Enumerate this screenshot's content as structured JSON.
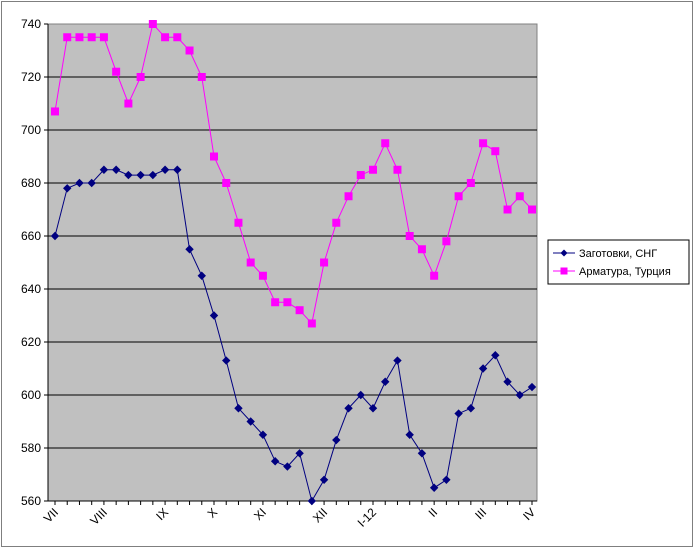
{
  "chart_data": {
    "type": "line",
    "title": "",
    "xlabel": "",
    "ylabel": "",
    "ylim": [
      560,
      740
    ],
    "yticks": [
      560,
      580,
      600,
      620,
      640,
      660,
      680,
      700,
      720,
      740
    ],
    "x_tick_labels": [
      {
        "label": "VII",
        "index": 0
      },
      {
        "label": "VIII",
        "index": 4
      },
      {
        "label": "IX",
        "index": 9
      },
      {
        "label": "X",
        "index": 13
      },
      {
        "label": "XI",
        "index": 17
      },
      {
        "label": "XII",
        "index": 22
      },
      {
        "label": "I-12",
        "index": 26
      },
      {
        "label": "II",
        "index": 31
      },
      {
        "label": "III",
        "index": 35
      },
      {
        "label": "IV",
        "index": 39
      }
    ],
    "grid": "horizontal",
    "plot_background": "#c0c0c0",
    "legend_position": "right",
    "series": [
      {
        "name": "Заготовки, СНГ",
        "color": "#000080",
        "marker": "diamond",
        "values": [
          660,
          678,
          680,
          680,
          685,
          685,
          683,
          683,
          683,
          685,
          685,
          655,
          645,
          630,
          613,
          595,
          590,
          585,
          575,
          573,
          578,
          560,
          568,
          583,
          595,
          600,
          595,
          605,
          613,
          585,
          578,
          565,
          568,
          593,
          595,
          610,
          615,
          605,
          600,
          603
        ]
      },
      {
        "name": "Арматура, Турция",
        "color": "#ff00ff",
        "marker": "square",
        "values": [
          707,
          735,
          735,
          735,
          735,
          722,
          710,
          720,
          740,
          735,
          735,
          730,
          720,
          690,
          680,
          665,
          650,
          645,
          635,
          635,
          632,
          627,
          650,
          665,
          675,
          683,
          685,
          695,
          685,
          660,
          655,
          645,
          658,
          675,
          680,
          695,
          692,
          670,
          675,
          670
        ]
      }
    ]
  }
}
